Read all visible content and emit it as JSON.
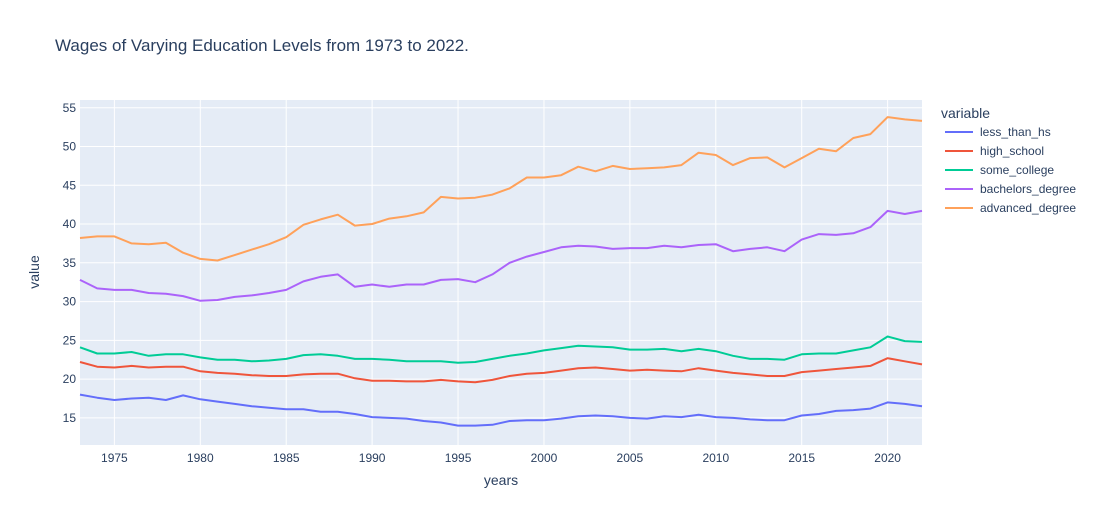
{
  "chart_data": {
    "type": "line",
    "title": "Wages of Varying Education Levels from 1973 to 2022.",
    "xlabel": "years",
    "ylabel": "value",
    "xlim": [
      1973,
      2022
    ],
    "ylim": [
      11.5,
      56
    ],
    "x_ticks": [
      1975,
      1980,
      1985,
      1990,
      1995,
      2000,
      2005,
      2010,
      2015,
      2020
    ],
    "y_ticks": [
      15,
      20,
      25,
      30,
      35,
      40,
      45,
      50,
      55
    ],
    "grid": true,
    "plot_background": "#e5ecf6",
    "grid_color": "#ffffff",
    "legend": {
      "title": "variable",
      "placement": "right"
    },
    "x": [
      1973,
      1974,
      1975,
      1976,
      1977,
      1978,
      1979,
      1980,
      1981,
      1982,
      1983,
      1984,
      1985,
      1986,
      1987,
      1988,
      1989,
      1990,
      1991,
      1992,
      1993,
      1994,
      1995,
      1996,
      1997,
      1998,
      1999,
      2000,
      2001,
      2002,
      2003,
      2004,
      2005,
      2006,
      2007,
      2008,
      2009,
      2010,
      2011,
      2012,
      2013,
      2014,
      2015,
      2016,
      2017,
      2018,
      2019,
      2020,
      2021,
      2022
    ],
    "series": [
      {
        "name": "less_than_hs",
        "color": "#636efa",
        "values": [
          18.0,
          17.6,
          17.3,
          17.5,
          17.6,
          17.3,
          17.9,
          17.4,
          17.1,
          16.8,
          16.5,
          16.3,
          16.1,
          16.1,
          15.8,
          15.8,
          15.5,
          15.1,
          15.0,
          14.9,
          14.6,
          14.4,
          14.0,
          14.0,
          14.1,
          14.6,
          14.7,
          14.7,
          14.9,
          15.2,
          15.3,
          15.2,
          15.0,
          14.9,
          15.2,
          15.1,
          15.4,
          15.1,
          15.0,
          14.8,
          14.7,
          14.7,
          15.3,
          15.5,
          15.9,
          16.0,
          16.2,
          17.0,
          16.8,
          16.5
        ]
      },
      {
        "name": "high_school",
        "color": "#ef553b",
        "values": [
          22.2,
          21.6,
          21.5,
          21.7,
          21.5,
          21.6,
          21.6,
          21.0,
          20.8,
          20.7,
          20.5,
          20.4,
          20.4,
          20.6,
          20.7,
          20.7,
          20.1,
          19.8,
          19.8,
          19.7,
          19.7,
          19.9,
          19.7,
          19.6,
          19.9,
          20.4,
          20.7,
          20.8,
          21.1,
          21.4,
          21.5,
          21.3,
          21.1,
          21.2,
          21.1,
          21.0,
          21.4,
          21.1,
          20.8,
          20.6,
          20.4,
          20.4,
          20.9,
          21.1,
          21.3,
          21.5,
          21.7,
          22.7,
          22.3,
          21.9
        ]
      },
      {
        "name": "some_college",
        "color": "#00cc96",
        "values": [
          24.1,
          23.3,
          23.3,
          23.5,
          23.0,
          23.2,
          23.2,
          22.8,
          22.5,
          22.5,
          22.3,
          22.4,
          22.6,
          23.1,
          23.2,
          23.0,
          22.6,
          22.6,
          22.5,
          22.3,
          22.3,
          22.3,
          22.1,
          22.2,
          22.6,
          23.0,
          23.3,
          23.7,
          24.0,
          24.3,
          24.2,
          24.1,
          23.8,
          23.8,
          23.9,
          23.6,
          23.9,
          23.6,
          23.0,
          22.6,
          22.6,
          22.5,
          23.2,
          23.3,
          23.3,
          23.7,
          24.1,
          25.5,
          24.9,
          24.8
        ]
      },
      {
        "name": "bachelors_degree",
        "color": "#ab63fa",
        "values": [
          32.8,
          31.7,
          31.5,
          31.5,
          31.1,
          31.0,
          30.7,
          30.1,
          30.2,
          30.6,
          30.8,
          31.1,
          31.5,
          32.6,
          33.2,
          33.5,
          31.9,
          32.2,
          31.9,
          32.2,
          32.2,
          32.8,
          32.9,
          32.5,
          33.5,
          35.0,
          35.8,
          36.4,
          37.0,
          37.2,
          37.1,
          36.8,
          36.9,
          36.9,
          37.2,
          37.0,
          37.3,
          37.4,
          36.5,
          36.8,
          37.0,
          36.5,
          38.0,
          38.7,
          38.6,
          38.8,
          39.6,
          41.7,
          41.3,
          41.7
        ]
      },
      {
        "name": "advanced_degree",
        "color": "#ffa15a",
        "values": [
          38.2,
          38.4,
          38.4,
          37.5,
          37.4,
          37.6,
          36.3,
          35.5,
          35.3,
          36.0,
          36.7,
          37.4,
          38.3,
          39.9,
          40.6,
          41.2,
          39.8,
          40.0,
          40.7,
          41.0,
          41.5,
          43.5,
          43.3,
          43.4,
          43.8,
          44.6,
          46.0,
          46.0,
          46.3,
          47.4,
          46.8,
          47.5,
          47.1,
          47.2,
          47.3,
          47.6,
          49.2,
          48.9,
          47.6,
          48.5,
          48.6,
          47.3,
          48.5,
          49.7,
          49.4,
          51.1,
          51.6,
          53.8,
          53.5,
          53.3
        ]
      }
    ]
  }
}
